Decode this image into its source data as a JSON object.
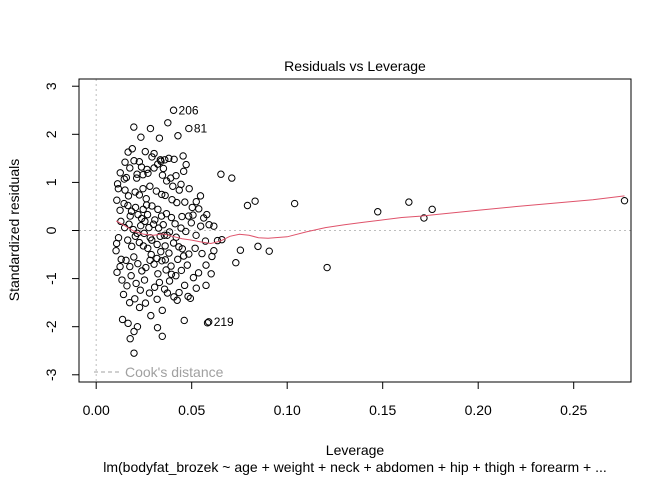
{
  "chart_data": {
    "type": "scatter",
    "title": "Residuals vs Leverage",
    "xlabel": "Leverage",
    "ylabel": "Standardized residuals",
    "subtitle": "lm(bodyfat_brozek ~ age + weight + neck + abdomen + hip + thigh + forearm + ...",
    "xlim": [
      -0.009,
      0.28
    ],
    "ylim": [
      -3.15,
      3.15
    ],
    "x_ticks": [
      0.0,
      0.05,
      0.1,
      0.15,
      0.2,
      0.25
    ],
    "x_tick_labels": [
      "0.00",
      "0.05",
      "0.10",
      "0.15",
      "0.20",
      "0.25"
    ],
    "y_ticks": [
      -3,
      -2,
      -1,
      0,
      1,
      2,
      3
    ],
    "y_tick_labels": [
      "-3",
      "-2",
      "-1",
      "0",
      "1",
      "2",
      "3"
    ],
    "grid": false,
    "legend": {
      "text": "Cook's distance",
      "placement": "bottom-left"
    },
    "colors": {
      "points": "#000000",
      "smooth": "#DF536B",
      "reference": "#BEBEBE",
      "legend_text": "#A0A0A0"
    },
    "points": [
      [
        0.0405,
        2.5
      ],
      [
        0.0485,
        2.12
      ],
      [
        0.0589,
        -1.9
      ],
      [
        0.0583,
        -1.92
      ],
      [
        0.0197,
        2.15
      ],
      [
        0.0375,
        2.24
      ],
      [
        0.0284,
        2.12
      ],
      [
        0.0234,
        1.94
      ],
      [
        0.0331,
        1.92
      ],
      [
        0.0428,
        1.97
      ],
      [
        0.0167,
        1.63
      ],
      [
        0.0189,
        1.7
      ],
      [
        0.0226,
        1.43
      ],
      [
        0.0257,
        1.64
      ],
      [
        0.0303,
        1.6
      ],
      [
        0.0336,
        1.47
      ],
      [
        0.0339,
        1.44
      ],
      [
        0.0359,
        1.47
      ],
      [
        0.038,
        1.5
      ],
      [
        0.0408,
        1.48
      ],
      [
        0.0455,
        1.55
      ],
      [
        0.0471,
        1.37
      ],
      [
        0.0151,
        1.42
      ],
      [
        0.0126,
        1.2
      ],
      [
        0.0147,
        1.07
      ],
      [
        0.0212,
        1.09
      ],
      [
        0.0245,
        1.16
      ],
      [
        0.0271,
        1.19
      ],
      [
        0.0303,
        1.3
      ],
      [
        0.0347,
        1.15
      ],
      [
        0.039,
        1.09
      ],
      [
        0.0418,
        1.14
      ],
      [
        0.0444,
        0.96
      ],
      [
        0.0487,
        0.87
      ],
      [
        0.0524,
        0.6
      ],
      [
        0.0546,
        0.72
      ],
      [
        0.0653,
        1.17
      ],
      [
        0.071,
        1.09
      ],
      [
        0.0116,
        0.87
      ],
      [
        0.0151,
        0.84
      ],
      [
        0.0169,
        0.72
      ],
      [
        0.0204,
        0.8
      ],
      [
        0.0226,
        0.74
      ],
      [
        0.0245,
        0.87
      ],
      [
        0.0262,
        0.66
      ],
      [
        0.0281,
        0.92
      ],
      [
        0.0315,
        0.82
      ],
      [
        0.0343,
        0.75
      ],
      [
        0.0361,
        0.73
      ],
      [
        0.0397,
        0.64
      ],
      [
        0.0422,
        0.58
      ],
      [
        0.0464,
        0.59
      ],
      [
        0.0125,
        0.42
      ],
      [
        0.0146,
        0.56
      ],
      [
        0.0166,
        0.52
      ],
      [
        0.0185,
        0.4
      ],
      [
        0.0206,
        0.48
      ],
      [
        0.0219,
        0.33
      ],
      [
        0.0246,
        0.44
      ],
      [
        0.0264,
        0.53
      ],
      [
        0.0292,
        0.51
      ],
      [
        0.0323,
        0.44
      ],
      [
        0.0342,
        0.3
      ],
      [
        0.0368,
        0.35
      ],
      [
        0.0394,
        0.27
      ],
      [
        0.0449,
        0.29
      ],
      [
        0.0484,
        0.3
      ],
      [
        0.0507,
        0.32
      ],
      [
        0.0537,
        0.45
      ],
      [
        0.0563,
        0.26
      ],
      [
        0.0579,
        0.33
      ],
      [
        0.0616,
        0.09
      ],
      [
        0.0129,
        0.19
      ],
      [
        0.0149,
        0.06
      ],
      [
        0.0172,
        0.13
      ],
      [
        0.0194,
        0.02
      ],
      [
        0.0215,
        -0.06
      ],
      [
        0.0233,
        0.1
      ],
      [
        0.0255,
        0.19
      ],
      [
        0.0276,
        0.06
      ],
      [
        0.03,
        0.13
      ],
      [
        0.0327,
        0.05
      ],
      [
        0.0351,
        0.12
      ],
      [
        0.0384,
        -0.03
      ],
      [
        0.0413,
        0.14
      ],
      [
        0.0444,
        0.05
      ],
      [
        0.0469,
        -0.02
      ],
      [
        0.0498,
        0.16
      ],
      [
        0.0523,
        -0.1
      ],
      [
        0.0572,
        -0.22
      ],
      [
        0.0635,
        -0.21
      ],
      [
        0.0165,
        -0.2
      ],
      [
        0.0186,
        -0.33
      ],
      [
        0.0205,
        -0.12
      ],
      [
        0.0226,
        -0.25
      ],
      [
        0.0247,
        -0.32
      ],
      [
        0.027,
        -0.37
      ],
      [
        0.0291,
        -0.2
      ],
      [
        0.0319,
        -0.29
      ],
      [
        0.0338,
        -0.44
      ],
      [
        0.0361,
        -0.32
      ],
      [
        0.0381,
        -0.47
      ],
      [
        0.0405,
        -0.26
      ],
      [
        0.0433,
        -0.34
      ],
      [
        0.0458,
        -0.53
      ],
      [
        0.0485,
        -0.49
      ],
      [
        0.0518,
        -0.37
      ],
      [
        0.0554,
        -0.48
      ],
      [
        0.0606,
        -0.54
      ],
      [
        0.0131,
        -0.6
      ],
      [
        0.0156,
        -0.62
      ],
      [
        0.0176,
        -0.75
      ],
      [
        0.0197,
        -0.55
      ],
      [
        0.0218,
        -0.69
      ],
      [
        0.0239,
        -0.84
      ],
      [
        0.026,
        -0.77
      ],
      [
        0.0282,
        -0.62
      ],
      [
        0.0303,
        -0.7
      ],
      [
        0.0323,
        -0.9
      ],
      [
        0.0344,
        -0.63
      ],
      [
        0.0366,
        -0.82
      ],
      [
        0.0392,
        -0.74
      ],
      [
        0.0417,
        -0.94
      ],
      [
        0.0446,
        -0.83
      ],
      [
        0.0477,
        -0.72
      ],
      [
        0.0509,
        -0.98
      ],
      [
        0.0536,
        -0.88
      ],
      [
        0.0575,
        -0.72
      ],
      [
        0.0602,
        -0.9
      ],
      [
        0.0109,
        -0.87
      ],
      [
        0.0135,
        -1.03
      ],
      [
        0.0161,
        -1.15
      ],
      [
        0.0183,
        -0.94
      ],
      [
        0.0209,
        -1.1
      ],
      [
        0.0231,
        -1.24
      ],
      [
        0.0253,
        -1.03
      ],
      [
        0.0279,
        -1.3
      ],
      [
        0.0306,
        -1.18
      ],
      [
        0.0331,
        -1.08
      ],
      [
        0.0358,
        -1.22
      ],
      [
        0.0384,
        -1.05
      ],
      [
        0.0407,
        -1.38
      ],
      [
        0.0434,
        -1.29
      ],
      [
        0.0463,
        -1.14
      ],
      [
        0.0493,
        -1.41
      ],
      [
        0.0524,
        -1.2
      ],
      [
        0.0575,
        -1.14
      ],
      [
        0.0143,
        -1.33
      ],
      [
        0.0175,
        -1.5
      ],
      [
        0.0202,
        -1.42
      ],
      [
        0.0227,
        -1.6
      ],
      [
        0.0258,
        -1.51
      ],
      [
        0.0286,
        -1.77
      ],
      [
        0.0319,
        -1.43
      ],
      [
        0.0346,
        -1.66
      ],
      [
        0.0373,
        -1.3
      ],
      [
        0.0424,
        -1.45
      ],
      [
        0.0481,
        -1.37
      ],
      [
        0.0138,
        -1.85
      ],
      [
        0.0167,
        -1.93
      ],
      [
        0.0178,
        -2.25
      ],
      [
        0.0198,
        -2.1
      ],
      [
        0.0216,
        -2.0
      ],
      [
        0.0198,
        -2.55
      ],
      [
        0.0321,
        -2.02
      ],
      [
        0.0346,
        -2.2
      ],
      [
        0.0461,
        -1.87
      ],
      [
        0.0731,
        -0.67
      ],
      [
        0.0755,
        -0.41
      ],
      [
        0.0792,
        0.52
      ],
      [
        0.0832,
        0.61
      ],
      [
        0.0847,
        -0.33
      ],
      [
        0.0906,
        -0.43
      ],
      [
        0.1039,
        0.56
      ],
      [
        0.1209,
        -0.77
      ],
      [
        0.1474,
        0.39
      ],
      [
        0.1637,
        0.59
      ],
      [
        0.1716,
        0.26
      ],
      [
        0.1759,
        0.44
      ],
      [
        0.2766,
        0.62
      ],
      [
        0.0108,
        0.63
      ],
      [
        0.0112,
        0.97
      ],
      [
        0.0107,
        -0.27
      ],
      [
        0.0104,
        -0.42
      ],
      [
        0.0117,
        -0.15
      ],
      [
        0.0125,
        -0.75
      ],
      [
        0.0158,
        1.1
      ],
      [
        0.0176,
        1.3
      ],
      [
        0.0198,
        1.45
      ],
      [
        0.0214,
        1.17
      ],
      [
        0.0237,
        1.32
      ],
      [
        0.0266,
        1.27
      ],
      [
        0.0292,
        1.53
      ],
      [
        0.0322,
        1.38
      ],
      [
        0.0352,
        1.29
      ],
      [
        0.0369,
        1.03
      ],
      [
        0.0401,
        0.92
      ],
      [
        0.0435,
        0.84
      ],
      [
        0.0458,
        1.23
      ],
      [
        0.0503,
        0.48
      ],
      [
        0.0547,
        0.09
      ],
      [
        0.0591,
        0.12
      ],
      [
        0.0616,
        -0.42
      ],
      [
        0.0658,
        -0.19
      ],
      [
        0.0238,
        0.25
      ],
      [
        0.0269,
        0.33
      ],
      [
        0.0307,
        0.22
      ],
      [
        0.0335,
        -0.12
      ],
      [
        0.0357,
        -0.1
      ],
      [
        0.0419,
        -0.14
      ],
      [
        0.0427,
        -0.6
      ],
      [
        0.0288,
        -0.5
      ],
      [
        0.0318,
        -0.58
      ],
      [
        0.0362,
        -0.61
      ],
      [
        0.0451,
        -0.38
      ],
      [
        0.0394,
        -0.91
      ],
      [
        0.0372,
        -0.1
      ],
      [
        0.0251,
        -0.06
      ],
      [
        0.0283,
        -0.15
      ],
      [
        0.0178,
        0.3
      ]
    ],
    "point_labels": [
      {
        "text": "206",
        "x": 0.0405,
        "y": 2.5
      },
      {
        "text": "81",
        "x": 0.0485,
        "y": 2.12
      },
      {
        "text": "219",
        "x": 0.0589,
        "y": -1.9
      }
    ],
    "smooth_line": {
      "x": [
        0.0105,
        0.015,
        0.02,
        0.025,
        0.03,
        0.035,
        0.04,
        0.045,
        0.05,
        0.055,
        0.06,
        0.065,
        0.07,
        0.075,
        0.08,
        0.085,
        0.09,
        0.1,
        0.11,
        0.12,
        0.13,
        0.14,
        0.15,
        0.16,
        0.17,
        0.18,
        0.2,
        0.22,
        0.24,
        0.26,
        0.2766
      ],
      "y": [
        0.2,
        0.1,
        -0.02,
        -0.08,
        -0.1,
        -0.07,
        -0.12,
        -0.17,
        -0.2,
        -0.24,
        -0.27,
        -0.22,
        -0.12,
        -0.08,
        -0.1,
        -0.15,
        -0.16,
        -0.13,
        -0.03,
        0.06,
        0.12,
        0.17,
        0.22,
        0.27,
        0.3,
        0.34,
        0.42,
        0.5,
        0.57,
        0.64,
        0.72
      ]
    }
  }
}
